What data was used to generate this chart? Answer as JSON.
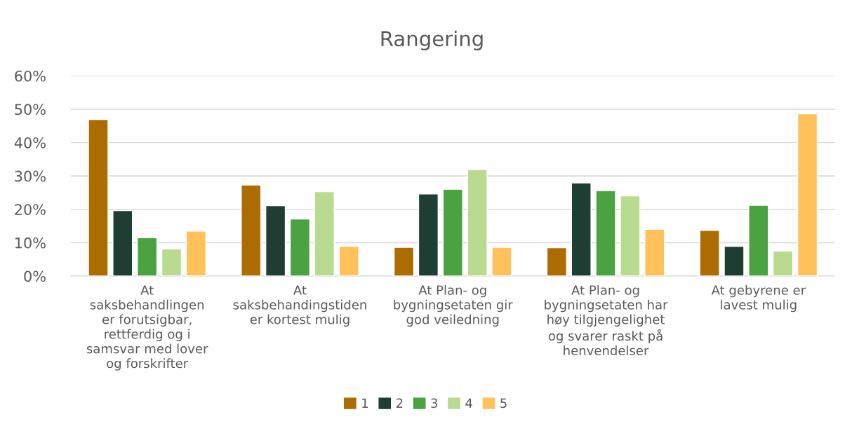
{
  "chart_data": {
    "type": "bar",
    "title": "Rangering",
    "categories": [
      "At saksbehandlingen er forutsigbar, rettferdig og i samsvar med lover og forskrifter",
      "At saksbehandingstiden er kortest mulig",
      "At Plan- og bygningsetaten gir god veiledning",
      "At Plan- og bygningsetaten har høy tilgjengelighet og svarer raskt på henvendelser",
      "At gebyrene er lavest mulig"
    ],
    "series": [
      {
        "name": "1",
        "color": "#ad6c00",
        "values": [
          46.9,
          27.3,
          8.6,
          8.5,
          13.7
        ]
      },
      {
        "name": "2",
        "color": "#1e3d33",
        "values": [
          19.6,
          21.1,
          24.6,
          27.9,
          8.9
        ]
      },
      {
        "name": "3",
        "color": "#4aa240",
        "values": [
          11.5,
          17.1,
          26.0,
          25.6,
          21.2
        ]
      },
      {
        "name": "4",
        "color": "#b8db8f",
        "values": [
          8.1,
          25.3,
          31.9,
          24.0,
          7.5
        ]
      },
      {
        "name": "5",
        "color": "#ffc15a",
        "values": [
          13.5,
          8.9,
          8.6,
          14.0,
          48.6
        ]
      }
    ],
    "ylim": [
      0,
      60
    ],
    "yticks": [
      {
        "value": 0,
        "label": "0%"
      },
      {
        "value": 10,
        "label": "10%"
      },
      {
        "value": 20,
        "label": "20%"
      },
      {
        "value": 30,
        "label": "30%"
      },
      {
        "value": 40,
        "label": "40%"
      },
      {
        "value": 50,
        "label": "50%"
      },
      {
        "value": 60,
        "label": "60%"
      }
    ],
    "grid": "y",
    "legend": "bottom"
  }
}
